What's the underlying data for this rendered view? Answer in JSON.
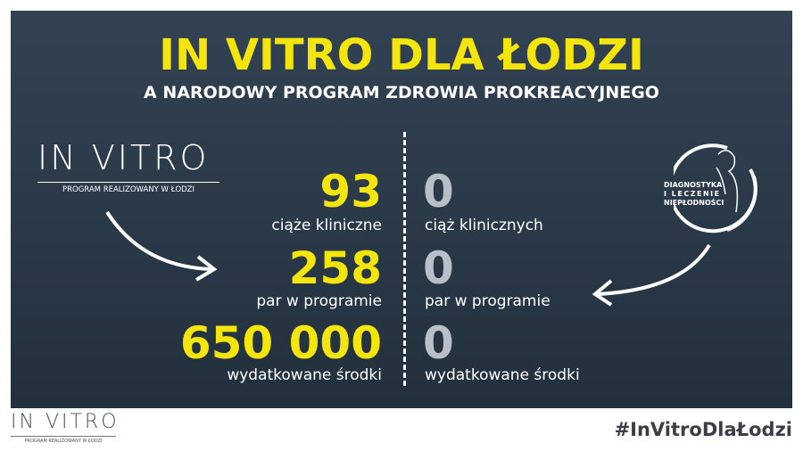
{
  "title": "IN VITRO DLA ŁODZI",
  "subtitle": "A NARODOWY PROGRAM ZDROWIA PROKREACYJNEGO",
  "left_logo": {
    "name": "IN VITRO",
    "tagline": "PROGRAM REALIZOWANY W ŁODZI"
  },
  "right_logo": {
    "line1": "DIAGNOSTYKA",
    "line2": "I LECZENIE",
    "line3": "NIEPŁODNOŚCI"
  },
  "stats_left": [
    {
      "value": "93",
      "label": "ciąże kliniczne"
    },
    {
      "value": "258",
      "label": "par w programie"
    },
    {
      "value": "650 000",
      "label": "wydatkowane środki"
    }
  ],
  "stats_right": [
    {
      "value": "0",
      "label": "ciąż klinicznych"
    },
    {
      "value": "0",
      "label": "par w programie"
    },
    {
      "value": "0",
      "label": "wydatkowane środki"
    }
  ],
  "footer": {
    "logo_name": "IN VITRO",
    "logo_tagline": "PROGRAM REALIZOWANY W ŁODZI",
    "hashtag": "#InVitroDlaŁodzi"
  },
  "colors": {
    "accent": "#f5e50f",
    "panel": "#2a3948"
  }
}
